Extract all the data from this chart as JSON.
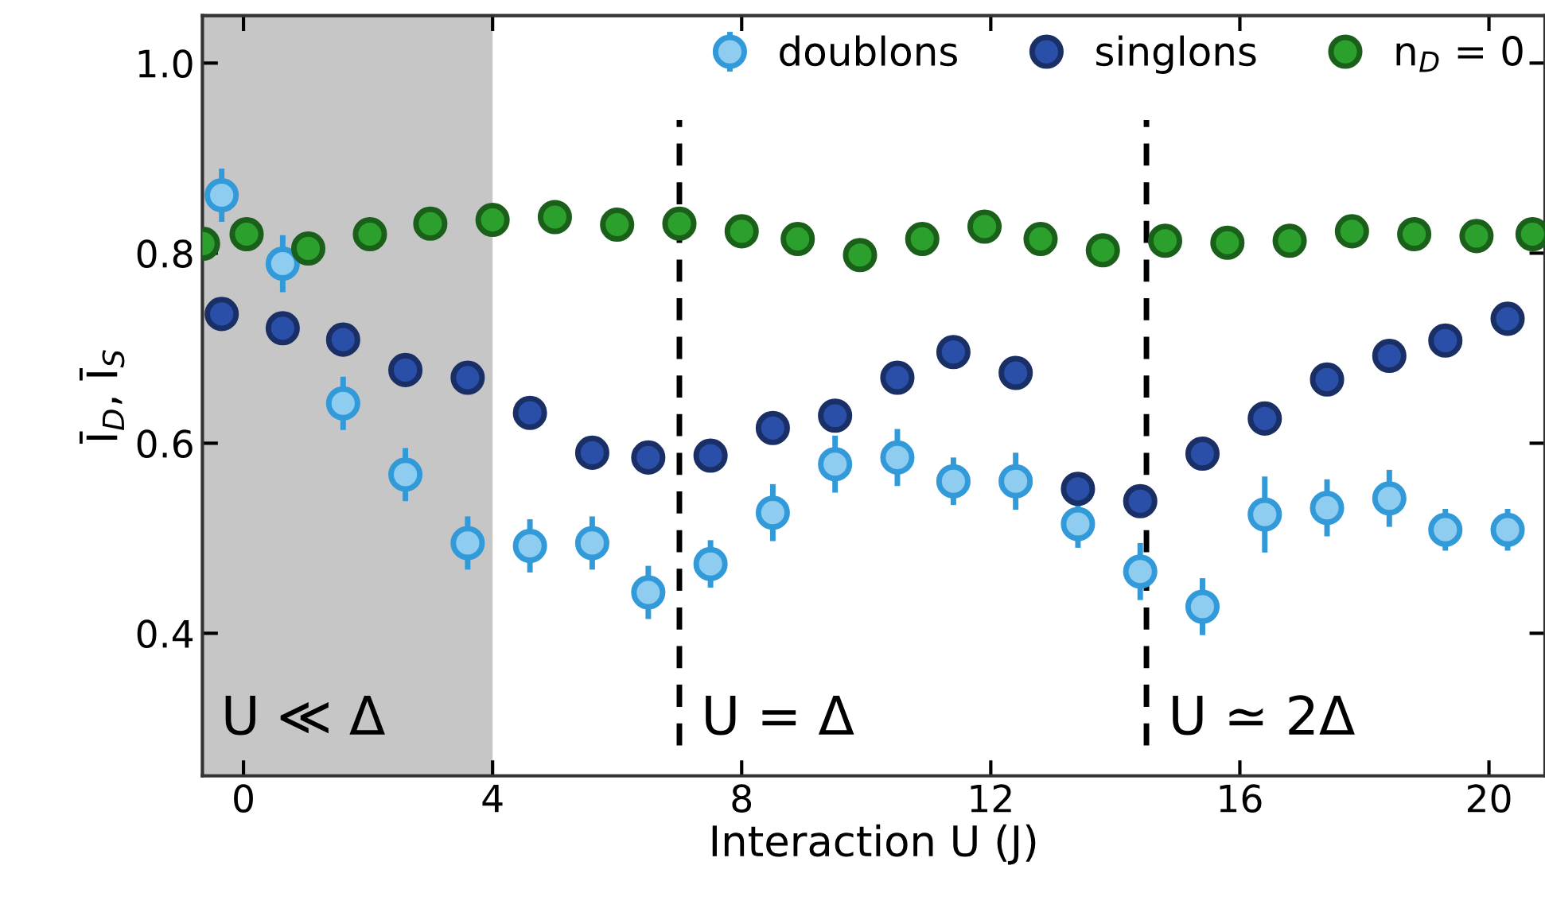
{
  "chart_data": {
    "type": "scatter",
    "xlabel": "Interaction U (J)",
    "ylabel": "Ī$_{D}$, Ī$_{S}$",
    "xlim": [
      -0.66,
      20.9
    ],
    "ylim": [
      0.25,
      1.05
    ],
    "xticks": [
      0,
      4,
      8,
      12,
      16,
      20
    ],
    "yticks": [
      0.4,
      0.6,
      0.8,
      {
        "value": 1.0,
        "label": "1.0"
      }
    ],
    "legend": "top right",
    "marker": "circle",
    "grid": false,
    "ref_lines": [
      {
        "axis": "x",
        "value": 7.0,
        "label": "U = Δ",
        "color": "#000000",
        "line_style": "dashed"
      },
      {
        "axis": "x",
        "value": 14.5,
        "label": "U ≃ 2Δ",
        "color": "#000000",
        "line_style": "dashed"
      }
    ],
    "bands": [
      {
        "axis": "x",
        "from": -0.66,
        "to": 4,
        "label": "U ≪ Δ",
        "color": "#a0a0a0"
      }
    ],
    "series": [
      {
        "name": "doublons",
        "color": "#8ecdf0",
        "x": [
          -0.35,
          0.63,
          1.6,
          2.6,
          3.6,
          4.6,
          5.6,
          6.5,
          7.5,
          8.5,
          9.5,
          10.5,
          11.4,
          12.4,
          13.4,
          14.4,
          15.4,
          16.4,
          17.4,
          18.4,
          19.3,
          20.3
        ],
        "values": [
          0.861,
          0.789,
          0.642,
          0.567,
          0.495,
          0.492,
          0.495,
          0.443,
          0.473,
          0.527,
          0.578,
          0.585,
          0.56,
          0.56,
          0.515,
          0.465,
          0.428,
          0.525,
          0.532,
          0.542,
          0.509,
          0.509
        ],
        "errors": [
          0.028,
          0.03,
          0.028,
          0.028,
          0.028,
          0.028,
          0.028,
          0.028,
          0.025,
          0.03,
          0.03,
          0.03,
          0.025,
          0.03,
          0.025,
          0.03,
          0.03,
          0.04,
          0.03,
          0.03,
          0.022,
          0.022
        ]
      },
      {
        "name": "singlons",
        "color": "#2a4fa8",
        "x": [
          -0.35,
          0.63,
          1.6,
          2.6,
          3.6,
          4.6,
          5.6,
          6.5,
          7.5,
          8.5,
          9.5,
          10.5,
          11.4,
          12.4,
          13.4,
          14.4,
          15.4,
          16.4,
          17.4,
          18.4,
          19.3,
          20.3
        ],
        "values": [
          0.736,
          0.721,
          0.709,
          0.677,
          0.669,
          0.632,
          0.59,
          0.585,
          0.587,
          0.616,
          0.629,
          0.669,
          0.696,
          0.674,
          0.552,
          0.539,
          0.589,
          0.626,
          0.667,
          0.692,
          0.708,
          0.731
        ]
      },
      {
        "name": "n$_{D}$ = 0",
        "color": "#2ca02c",
        "x": [
          -0.65,
          0.05,
          1.04,
          2.03,
          3.0,
          4.0,
          5.0,
          6.0,
          7.0,
          8.0,
          8.9,
          9.9,
          10.9,
          11.9,
          12.8,
          13.8,
          14.8,
          15.8,
          16.8,
          17.8,
          18.8,
          19.8,
          20.7
        ],
        "values": [
          0.81,
          0.82,
          0.805,
          0.82,
          0.831,
          0.835,
          0.838,
          0.83,
          0.831,
          0.823,
          0.815,
          0.798,
          0.815,
          0.828,
          0.815,
          0.803,
          0.813,
          0.811,
          0.813,
          0.823,
          0.82,
          0.818,
          0.82
        ]
      }
    ]
  }
}
